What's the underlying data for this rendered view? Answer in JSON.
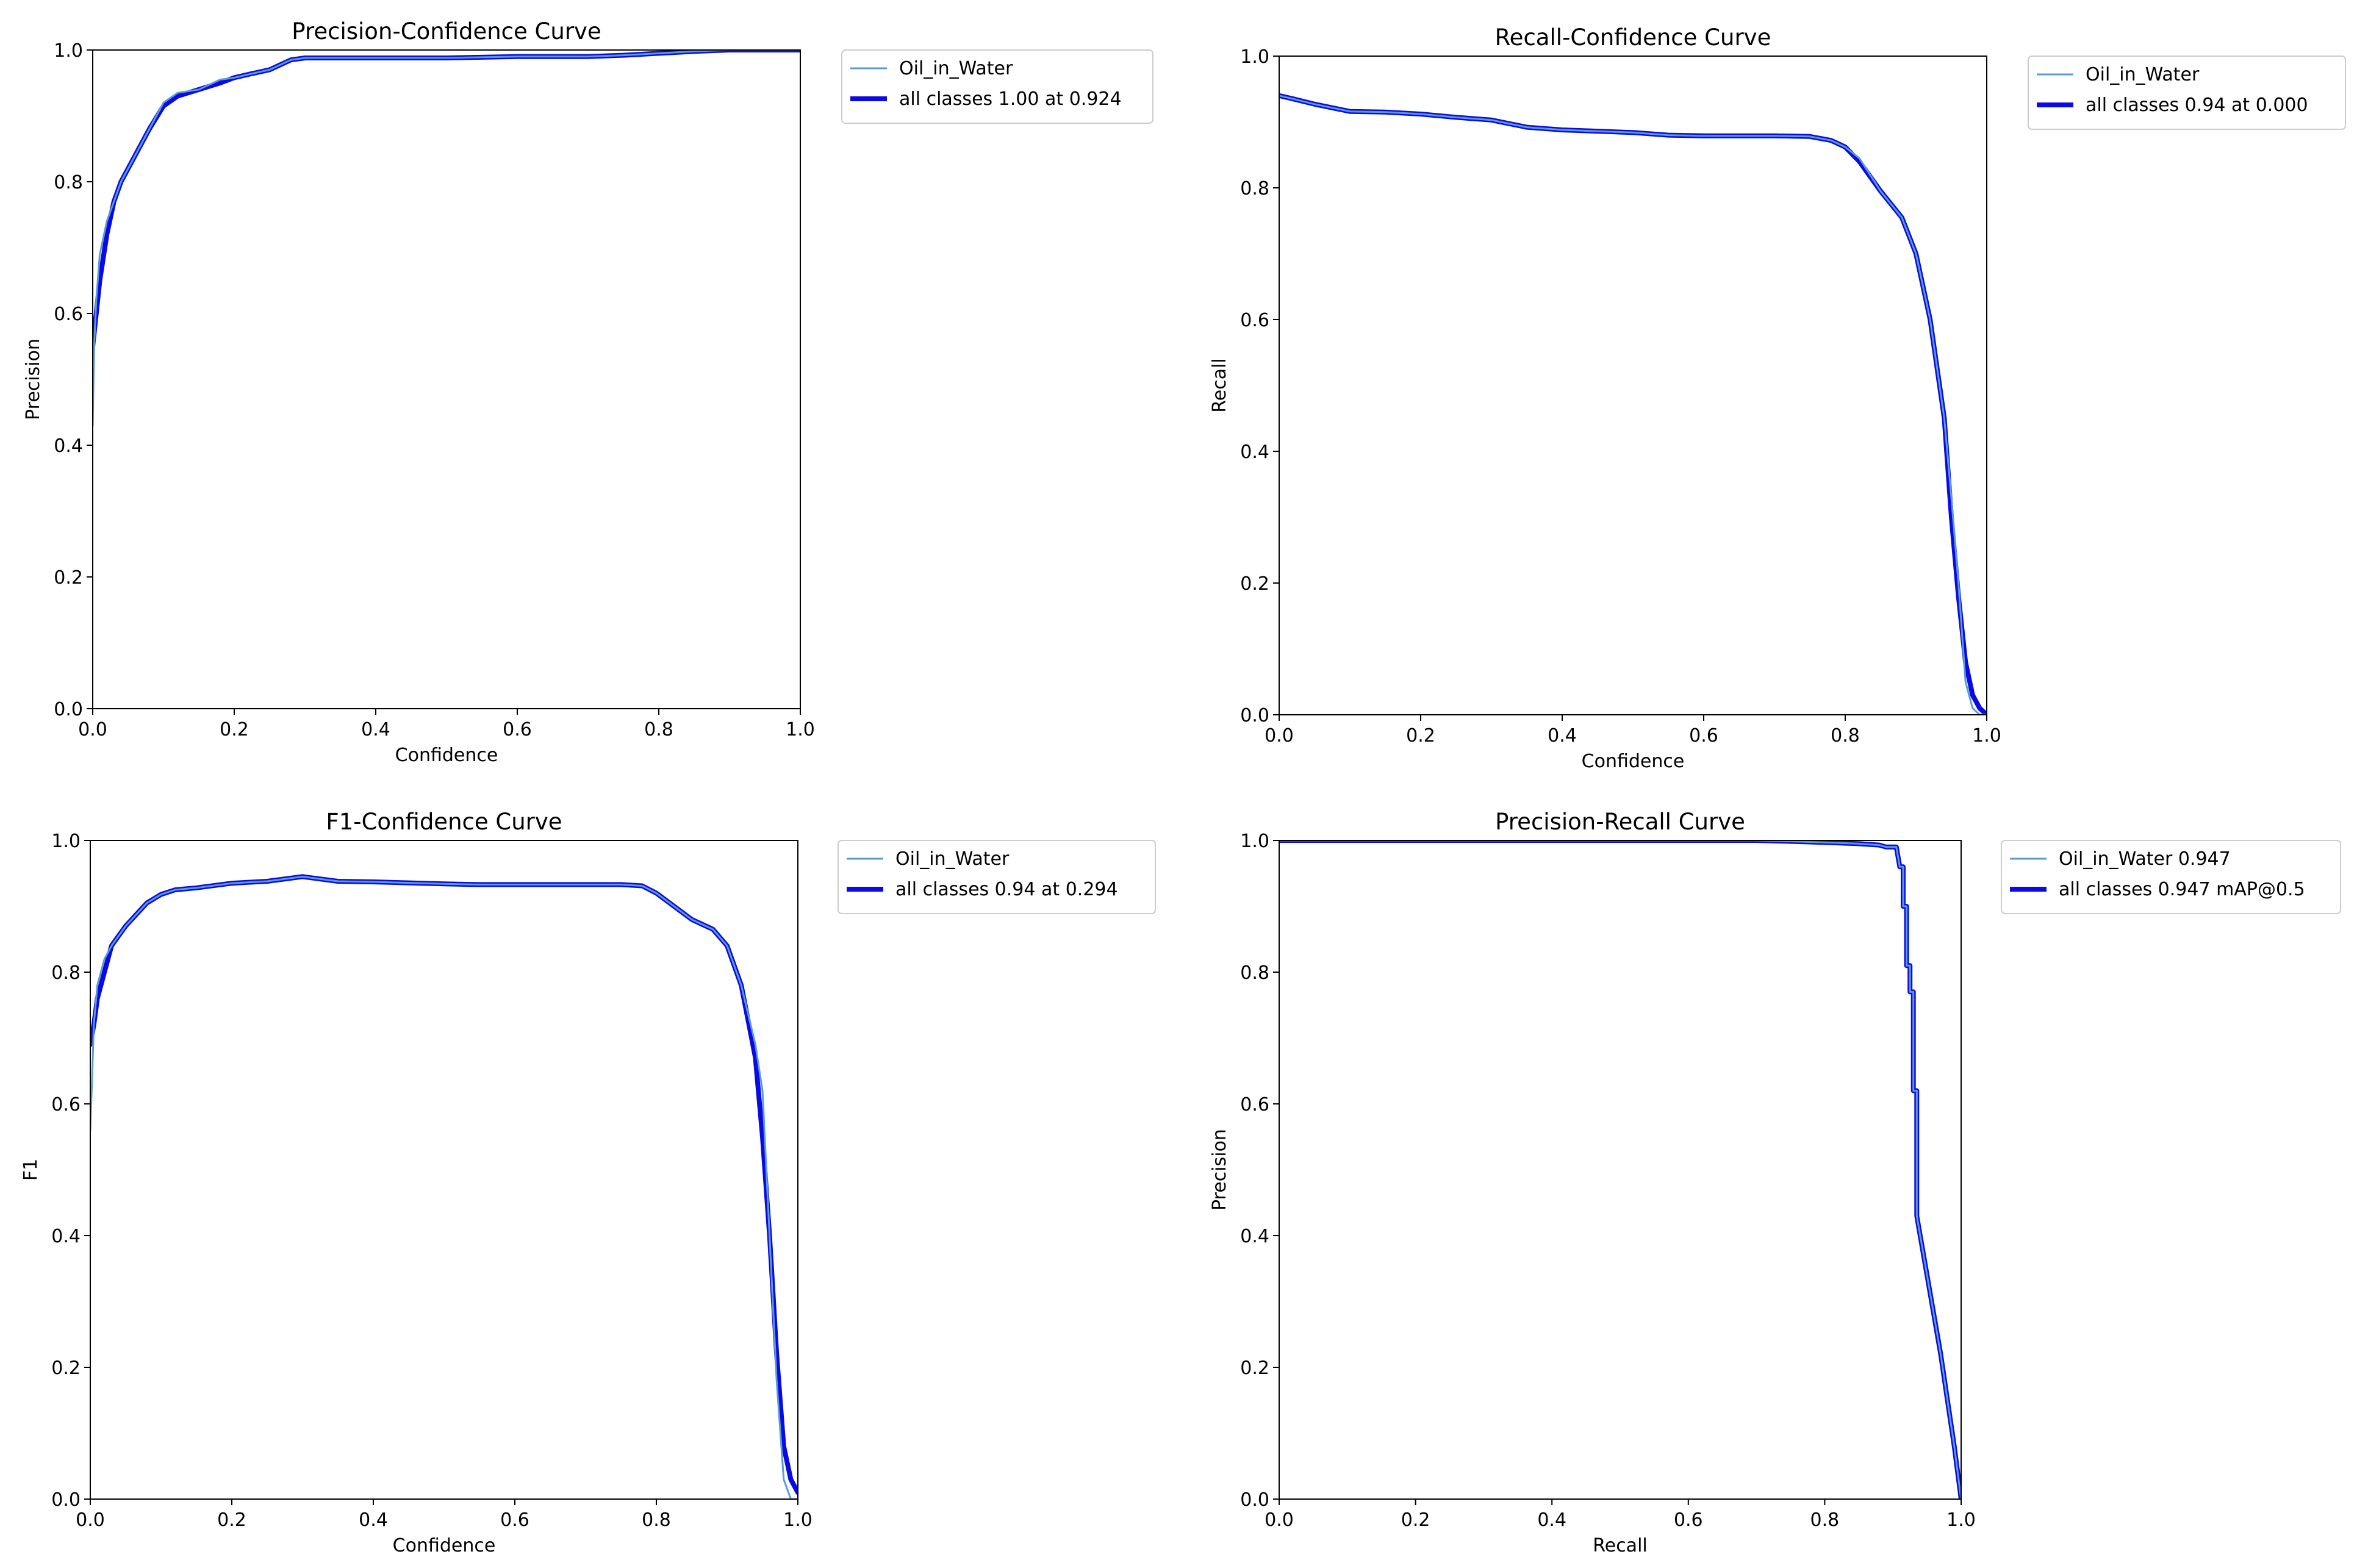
{
  "colors": {
    "class_line": "#5b9bd5",
    "all_line": "#0a0ae6",
    "axes": "#000000",
    "legend_border": "#cccccc"
  },
  "chart_data": [
    {
      "type": "line",
      "title": "Precision-Confidence Curve",
      "xlabel": "Confidence",
      "ylabel": "Precision",
      "xlim": [
        0,
        1
      ],
      "ylim": [
        0,
        1
      ],
      "xticks": [
        "0.0",
        "0.2",
        "0.4",
        "0.6",
        "0.8",
        "1.0"
      ],
      "yticks": [
        "0.0",
        "0.2",
        "0.4",
        "0.6",
        "0.8",
        "1.0"
      ],
      "grid": false,
      "legend_position": "outside-top-right",
      "series": [
        {
          "name": "Oil_in_Water",
          "style": "thin",
          "x": [
            0.0,
            0.002,
            0.005,
            0.01,
            0.02,
            0.03,
            0.04,
            0.06,
            0.08,
            0.1,
            0.12,
            0.15,
            0.18,
            0.2,
            0.22,
            0.25,
            0.28,
            0.3,
            0.35,
            0.4,
            0.5,
            0.6,
            0.7,
            0.75,
            0.8,
            0.85,
            0.9,
            0.95,
            1.0
          ],
          "y": [
            0.43,
            0.55,
            0.62,
            0.69,
            0.74,
            0.77,
            0.8,
            0.84,
            0.88,
            0.92,
            0.935,
            0.94,
            0.955,
            0.958,
            0.963,
            0.97,
            0.985,
            0.988,
            0.988,
            0.988,
            0.988,
            0.99,
            0.99,
            0.992,
            0.995,
            0.998,
            1.0,
            1.0,
            1.0
          ]
        },
        {
          "name": "all classes 1.00 at 0.924",
          "style": "thick",
          "x": [
            0.0,
            0.005,
            0.01,
            0.02,
            0.03,
            0.04,
            0.06,
            0.08,
            0.1,
            0.12,
            0.15,
            0.18,
            0.2,
            0.22,
            0.25,
            0.28,
            0.3,
            0.35,
            0.4,
            0.5,
            0.6,
            0.7,
            0.75,
            0.8,
            0.85,
            0.9,
            0.95,
            1.0
          ],
          "y": [
            0.55,
            0.6,
            0.65,
            0.72,
            0.77,
            0.8,
            0.84,
            0.88,
            0.915,
            0.93,
            0.94,
            0.95,
            0.958,
            0.963,
            0.97,
            0.985,
            0.988,
            0.988,
            0.988,
            0.988,
            0.99,
            0.99,
            0.992,
            0.995,
            0.998,
            1.0,
            1.0,
            1.0
          ]
        }
      ]
    },
    {
      "type": "line",
      "title": "Recall-Confidence Curve",
      "xlabel": "Confidence",
      "ylabel": "Recall",
      "xlim": [
        0,
        1
      ],
      "ylim": [
        0,
        1
      ],
      "xticks": [
        "0.0",
        "0.2",
        "0.4",
        "0.6",
        "0.8",
        "1.0"
      ],
      "yticks": [
        "0.0",
        "0.2",
        "0.4",
        "0.6",
        "0.8",
        "1.0"
      ],
      "grid": false,
      "legend_position": "outside-top-right",
      "series": [
        {
          "name": "Oil_in_Water",
          "style": "thin",
          "x": [
            0.0,
            0.02,
            0.05,
            0.1,
            0.15,
            0.2,
            0.25,
            0.3,
            0.35,
            0.4,
            0.45,
            0.5,
            0.55,
            0.6,
            0.65,
            0.7,
            0.75,
            0.78,
            0.8,
            0.82,
            0.85,
            0.88,
            0.9,
            0.92,
            0.94,
            0.95,
            0.96,
            0.97,
            0.98,
            0.99,
            1.0
          ],
          "y": [
            0.94,
            0.935,
            0.927,
            0.916,
            0.915,
            0.912,
            0.907,
            0.903,
            0.892,
            0.888,
            0.886,
            0.884,
            0.88,
            0.879,
            0.879,
            0.879,
            0.878,
            0.872,
            0.862,
            0.845,
            0.795,
            0.755,
            0.7,
            0.6,
            0.45,
            0.33,
            0.2,
            0.05,
            0.01,
            0.0,
            0.0
          ]
        },
        {
          "name": "all classes 0.94 at 0.000",
          "style": "thick",
          "x": [
            0.0,
            0.02,
            0.05,
            0.1,
            0.15,
            0.2,
            0.25,
            0.3,
            0.35,
            0.4,
            0.45,
            0.5,
            0.55,
            0.6,
            0.65,
            0.7,
            0.75,
            0.78,
            0.8,
            0.82,
            0.85,
            0.88,
            0.9,
            0.92,
            0.94,
            0.95,
            0.96,
            0.97,
            0.98,
            0.99,
            1.0
          ],
          "y": [
            0.94,
            0.935,
            0.927,
            0.916,
            0.915,
            0.912,
            0.907,
            0.903,
            0.892,
            0.888,
            0.886,
            0.884,
            0.88,
            0.879,
            0.879,
            0.879,
            0.878,
            0.872,
            0.862,
            0.84,
            0.795,
            0.755,
            0.7,
            0.6,
            0.45,
            0.3,
            0.18,
            0.08,
            0.03,
            0.01,
            0.0
          ]
        }
      ]
    },
    {
      "type": "line",
      "title": "F1-Confidence Curve",
      "xlabel": "Confidence",
      "ylabel": "F1",
      "xlim": [
        0,
        1
      ],
      "ylim": [
        0,
        1
      ],
      "xticks": [
        "0.0",
        "0.2",
        "0.4",
        "0.6",
        "0.8",
        "1.0"
      ],
      "yticks": [
        "0.0",
        "0.2",
        "0.4",
        "0.6",
        "0.8",
        "1.0"
      ],
      "grid": false,
      "legend_position": "outside-top-right",
      "series": [
        {
          "name": "Oil_in_Water",
          "style": "thin",
          "x": [
            0.0,
            0.002,
            0.005,
            0.01,
            0.02,
            0.03,
            0.05,
            0.08,
            0.1,
            0.12,
            0.15,
            0.2,
            0.25,
            0.3,
            0.35,
            0.4,
            0.5,
            0.55,
            0.6,
            0.7,
            0.75,
            0.78,
            0.8,
            0.85,
            0.88,
            0.9,
            0.92,
            0.94,
            0.95,
            0.96,
            0.97,
            0.98,
            0.99,
            1.0
          ],
          "y": [
            0.56,
            0.62,
            0.72,
            0.78,
            0.82,
            0.84,
            0.87,
            0.905,
            0.918,
            0.925,
            0.928,
            0.935,
            0.938,
            0.945,
            0.938,
            0.937,
            0.934,
            0.933,
            0.933,
            0.933,
            0.933,
            0.931,
            0.92,
            0.88,
            0.865,
            0.84,
            0.78,
            0.69,
            0.62,
            0.4,
            0.18,
            0.03,
            0.0,
            0.0
          ]
        },
        {
          "name": "all classes 0.94 at 0.294",
          "style": "thick",
          "x": [
            0.0,
            0.005,
            0.01,
            0.02,
            0.03,
            0.05,
            0.08,
            0.1,
            0.12,
            0.15,
            0.2,
            0.25,
            0.3,
            0.35,
            0.4,
            0.5,
            0.55,
            0.6,
            0.7,
            0.75,
            0.78,
            0.8,
            0.85,
            0.88,
            0.9,
            0.92,
            0.94,
            0.95,
            0.96,
            0.97,
            0.98,
            0.99,
            1.0
          ],
          "y": [
            0.69,
            0.72,
            0.76,
            0.8,
            0.84,
            0.87,
            0.905,
            0.918,
            0.925,
            0.928,
            0.935,
            0.938,
            0.945,
            0.938,
            0.937,
            0.934,
            0.933,
            0.933,
            0.933,
            0.933,
            0.931,
            0.92,
            0.88,
            0.865,
            0.84,
            0.78,
            0.67,
            0.55,
            0.4,
            0.22,
            0.08,
            0.03,
            0.01
          ]
        }
      ]
    },
    {
      "type": "line",
      "title": "Precision-Recall Curve",
      "xlabel": "Recall",
      "ylabel": "Precision",
      "xlim": [
        0,
        1
      ],
      "ylim": [
        0,
        1
      ],
      "xticks": [
        "0.0",
        "0.2",
        "0.4",
        "0.6",
        "0.8",
        "1.0"
      ],
      "yticks": [
        "0.0",
        "0.2",
        "0.4",
        "0.6",
        "0.8",
        "1.0"
      ],
      "grid": false,
      "legend_position": "outside-top-right",
      "series": [
        {
          "name": "Oil_in_Water 0.947",
          "style": "thin",
          "x": [
            0.0,
            0.5,
            0.7,
            0.8,
            0.85,
            0.88,
            0.89,
            0.9,
            0.905,
            0.91,
            0.915,
            0.915,
            0.92,
            0.92,
            0.925,
            0.925,
            0.93,
            0.93,
            0.935,
            0.935,
            0.94,
            0.95,
            0.96,
            0.97,
            0.98,
            0.99,
            1.0
          ],
          "y": [
            1.0,
            1.0,
            1.0,
            0.997,
            0.995,
            0.993,
            0.99,
            0.99,
            0.99,
            0.96,
            0.96,
            0.9,
            0.9,
            0.81,
            0.81,
            0.77,
            0.77,
            0.62,
            0.62,
            0.43,
            0.4,
            0.34,
            0.28,
            0.22,
            0.15,
            0.08,
            0.0
          ]
        },
        {
          "name": "all classes 0.947 mAP@0.5",
          "style": "thick",
          "x": [
            0.0,
            0.5,
            0.7,
            0.8,
            0.85,
            0.88,
            0.89,
            0.9,
            0.905,
            0.91,
            0.915,
            0.915,
            0.92,
            0.92,
            0.925,
            0.925,
            0.93,
            0.93,
            0.935,
            0.935,
            0.94,
            0.95,
            0.96,
            0.97,
            0.98,
            0.99,
            1.0
          ],
          "y": [
            1.0,
            1.0,
            1.0,
            0.997,
            0.995,
            0.993,
            0.99,
            0.99,
            0.99,
            0.96,
            0.96,
            0.9,
            0.9,
            0.81,
            0.81,
            0.77,
            0.77,
            0.62,
            0.62,
            0.43,
            0.4,
            0.34,
            0.28,
            0.22,
            0.15,
            0.08,
            0.0
          ]
        }
      ]
    }
  ]
}
